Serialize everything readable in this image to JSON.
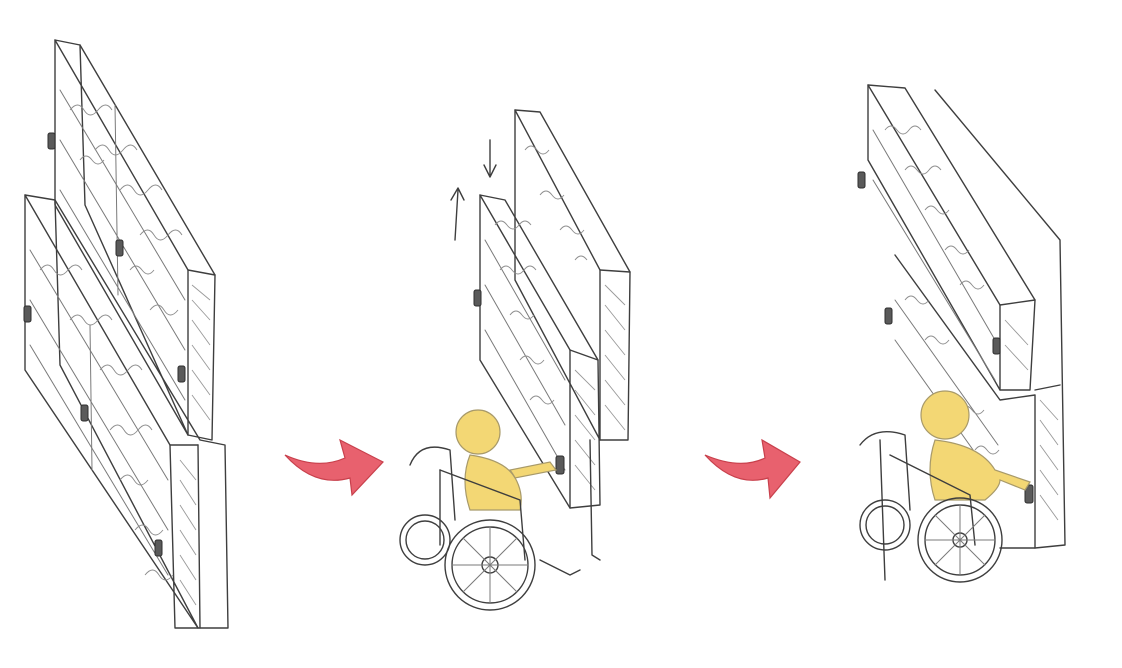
{
  "scene": {
    "panels": [
      {
        "id": "shelves-lowered",
        "description_label": ""
      },
      {
        "id": "shelf-moving",
        "description_label": ""
      },
      {
        "id": "wheelchair-user-reaching",
        "description_label": ""
      }
    ],
    "colors": {
      "paper": "#ffffff",
      "pencil": "#3e3e3e",
      "arrow": "#e8616e",
      "figure": "#f3d774"
    },
    "icons": [
      "up-arrow-icon",
      "down-arrow-icon",
      "transition-arrow-icon",
      "wheelchair-icon",
      "person-icon",
      "handle-icon"
    ]
  }
}
